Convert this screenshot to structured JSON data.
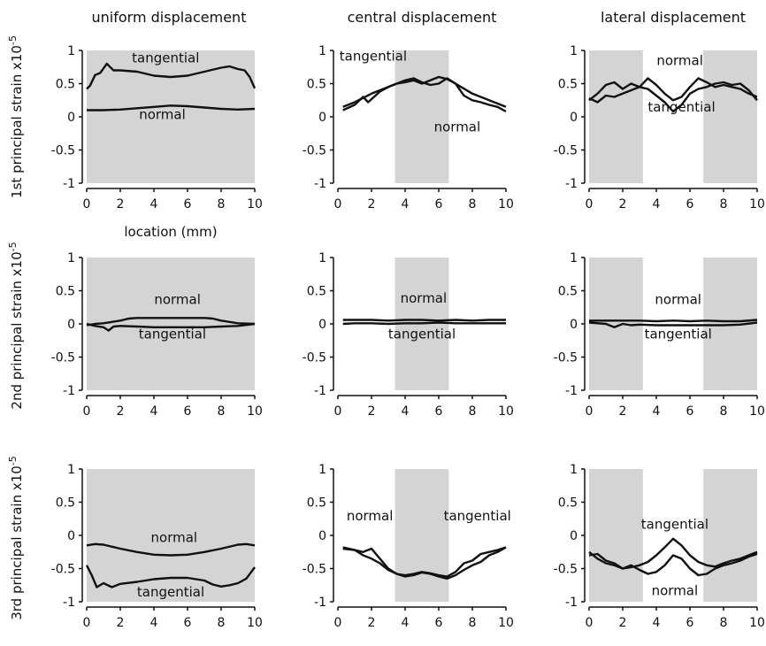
{
  "figure": {
    "col_titles": [
      "uniform displacement",
      "central displacement",
      "lateral displacement"
    ],
    "row_ylabels": [
      "1st principal strain x10",
      "2nd  principal strain x10",
      "3rd  principal strain x10"
    ],
    "ylabel_exponent": "-5",
    "xlabel": "location (mm)"
  },
  "chart_data": [
    {
      "type": "line",
      "title": "uniform displacement",
      "ylabel": "1st principal strain x10-5",
      "xlim": [
        0,
        10
      ],
      "ylim": [
        -1,
        1
      ],
      "xticks": [
        "0",
        "2",
        "4",
        "6",
        "8",
        "10"
      ],
      "yticks": [
        "1",
        "0.5",
        "0",
        "-0.5",
        "-1"
      ],
      "shaded": [
        [
          0,
          10
        ]
      ],
      "series": [
        {
          "name": "tangential",
          "x": [
            0,
            0.2,
            0.5,
            0.8,
            1,
            1.2,
            1.4,
            1.6,
            2,
            3,
            4,
            5,
            6,
            7,
            8,
            8.5,
            9,
            9.4,
            9.7,
            10
          ],
          "y": [
            0.42,
            0.47,
            0.63,
            0.66,
            0.73,
            0.8,
            0.75,
            0.7,
            0.7,
            0.68,
            0.62,
            0.6,
            0.62,
            0.68,
            0.74,
            0.76,
            0.72,
            0.7,
            0.6,
            0.43
          ]
        },
        {
          "name": "normal",
          "x": [
            0,
            1,
            2,
            3,
            4,
            5,
            6,
            7,
            8,
            9,
            10
          ],
          "y": [
            0.1,
            0.1,
            0.11,
            0.13,
            0.15,
            0.17,
            0.16,
            0.14,
            0.12,
            0.11,
            0.12
          ]
        }
      ],
      "annotations": [
        {
          "text": "tangential",
          "x": 4.7,
          "y": 0.82
        },
        {
          "text": "normal",
          "x": 4.5,
          "y": -0.03
        }
      ]
    },
    {
      "type": "line",
      "title": "central displacement",
      "ylabel": "",
      "xlim": [
        0,
        10
      ],
      "ylim": [
        -1,
        1
      ],
      "xticks": [
        "0",
        "2",
        "4",
        "6",
        "8",
        "10"
      ],
      "yticks": [
        "1",
        "0.5",
        "0",
        "-0.5",
        "-1"
      ],
      "shaded": [
        [
          3.4,
          6.6
        ]
      ],
      "series": [
        {
          "name": "tangential",
          "x": [
            0.3,
            1,
            1.5,
            1.8,
            2.5,
            3,
            3.5,
            4,
            4.5,
            5,
            5.5,
            6,
            6.5,
            7,
            8,
            9,
            10
          ],
          "y": [
            0.1,
            0.18,
            0.3,
            0.22,
            0.38,
            0.45,
            0.5,
            0.52,
            0.55,
            0.5,
            0.55,
            0.6,
            0.57,
            0.5,
            0.35,
            0.25,
            0.15
          ]
        },
        {
          "name": "normal",
          "x": [
            0.3,
            1,
            2,
            3,
            4,
            4.5,
            5,
            5.5,
            6,
            6.5,
            7,
            7.5,
            8,
            8.5,
            9,
            9.5,
            10
          ],
          "y": [
            0.15,
            0.22,
            0.35,
            0.45,
            0.55,
            0.58,
            0.52,
            0.48,
            0.5,
            0.58,
            0.5,
            0.32,
            0.25,
            0.22,
            0.18,
            0.15,
            0.08
          ]
        }
      ],
      "annotations": [
        {
          "text": "tangential",
          "x": 2.1,
          "y": 0.85
        },
        {
          "text": "normal",
          "x": 7.1,
          "y": -0.22
        }
      ]
    },
    {
      "type": "line",
      "title": "lateral displacement",
      "ylabel": "",
      "xlim": [
        0,
        10
      ],
      "ylim": [
        -1,
        1
      ],
      "xticks": [
        "0",
        "2",
        "4",
        "6",
        "8",
        "10"
      ],
      "yticks": [
        "1",
        "0.5",
        "0",
        "-0.5",
        "-1"
      ],
      "shaded": [
        [
          0,
          3.2
        ],
        [
          6.8,
          10
        ]
      ],
      "series": [
        {
          "name": "normal",
          "x": [
            0,
            0.5,
            1,
            1.5,
            2,
            2.5,
            3,
            3.5,
            4,
            4.5,
            5,
            5.5,
            6,
            6.5,
            7,
            7.5,
            8,
            8.5,
            9,
            9.5,
            10
          ],
          "y": [
            0.25,
            0.35,
            0.48,
            0.52,
            0.42,
            0.5,
            0.45,
            0.58,
            0.48,
            0.35,
            0.25,
            0.3,
            0.45,
            0.58,
            0.52,
            0.45,
            0.48,
            0.45,
            0.42,
            0.35,
            0.3
          ]
        },
        {
          "name": "tangential",
          "x": [
            0,
            0.5,
            1,
            1.5,
            2,
            2.5,
            3,
            3.5,
            4,
            4.5,
            5,
            5.5,
            6,
            6.5,
            7,
            7.5,
            8,
            8.5,
            9,
            9.5,
            10
          ],
          "y": [
            0.28,
            0.22,
            0.32,
            0.3,
            0.35,
            0.4,
            0.45,
            0.42,
            0.32,
            0.22,
            0.08,
            0.18,
            0.35,
            0.42,
            0.45,
            0.5,
            0.52,
            0.48,
            0.5,
            0.4,
            0.25
          ]
        }
      ],
      "annotations": [
        {
          "text": "normal",
          "x": 5.4,
          "y": 0.78
        },
        {
          "text": "tangential",
          "x": 5.5,
          "y": 0.08
        }
      ]
    },
    {
      "type": "line",
      "title": "",
      "ylabel": "2nd  principal strain x10-5",
      "xlim": [
        0,
        10
      ],
      "ylim": [
        -1,
        1
      ],
      "xticks": [
        "0",
        "2",
        "4",
        "6",
        "8",
        "10"
      ],
      "yticks": [
        "1",
        "0.5",
        "0",
        "-0.5",
        "-1"
      ],
      "shaded": [
        [
          0,
          10
        ]
      ],
      "series": [
        {
          "name": "normal",
          "x": [
            0,
            0.5,
            1,
            1.5,
            2,
            2.5,
            3,
            4,
            5,
            6,
            7,
            7.5,
            8,
            8.5,
            9,
            10
          ],
          "y": [
            -0.02,
            0,
            0.01,
            0.03,
            0.05,
            0.08,
            0.09,
            0.09,
            0.09,
            0.09,
            0.09,
            0.08,
            0.05,
            0.03,
            0.01,
            0
          ]
        },
        {
          "name": "tangential",
          "x": [
            0,
            0.5,
            1,
            1.3,
            1.6,
            2,
            3,
            4,
            5,
            6,
            7,
            8,
            9,
            10
          ],
          "y": [
            0,
            -0.03,
            -0.05,
            -0.1,
            -0.04,
            -0.03,
            -0.04,
            -0.05,
            -0.05,
            -0.05,
            -0.05,
            -0.04,
            -0.03,
            0
          ]
        }
      ],
      "annotations": [
        {
          "text": "normal",
          "x": 5.4,
          "y": 0.3
        },
        {
          "text": "tangential",
          "x": 5.1,
          "y": -0.22
        }
      ]
    },
    {
      "type": "line",
      "title": "",
      "ylabel": "",
      "xlim": [
        0,
        10
      ],
      "ylim": [
        -1,
        1
      ],
      "xticks": [
        "0",
        "2",
        "4",
        "6",
        "8",
        "10"
      ],
      "yticks": [
        "1",
        "0.5",
        "0",
        "-0.5",
        "-1"
      ],
      "shaded": [
        [
          3.4,
          6.6
        ]
      ],
      "series": [
        {
          "name": "normal",
          "x": [
            0.3,
            1,
            2,
            3,
            4,
            5,
            6,
            7,
            8,
            9,
            10
          ],
          "y": [
            0.06,
            0.06,
            0.06,
            0.05,
            0.06,
            0.06,
            0.05,
            0.06,
            0.05,
            0.06,
            0.06
          ]
        },
        {
          "name": "tangential",
          "x": [
            0.3,
            1,
            2,
            3,
            4,
            5,
            6,
            7,
            8,
            9,
            10
          ],
          "y": [
            0,
            0.01,
            0.01,
            0,
            0.01,
            0.01,
            0.02,
            0.01,
            0.01,
            0.01,
            0.01
          ]
        }
      ],
      "annotations": [
        {
          "text": "normal",
          "x": 5.1,
          "y": 0.32
        },
        {
          "text": "tangential",
          "x": 5,
          "y": -0.22
        }
      ]
    },
    {
      "type": "line",
      "title": "",
      "ylabel": "",
      "xlim": [
        0,
        10
      ],
      "ylim": [
        -1,
        1
      ],
      "xticks": [
        "0",
        "2",
        "4",
        "6",
        "8",
        "10"
      ],
      "yticks": [
        "1",
        "0.5",
        "0",
        "-0.5",
        "-1"
      ],
      "shaded": [
        [
          0,
          3.2
        ],
        [
          6.8,
          10
        ]
      ],
      "series": [
        {
          "name": "normal",
          "x": [
            0,
            1,
            2,
            3,
            4,
            5,
            6,
            7,
            8,
            9,
            10
          ],
          "y": [
            0.05,
            0.05,
            0.05,
            0.05,
            0.04,
            0.05,
            0.04,
            0.05,
            0.04,
            0.04,
            0.06
          ]
        },
        {
          "name": "tangential",
          "x": [
            0,
            1,
            1.5,
            2,
            2.5,
            3,
            4,
            5,
            6,
            7,
            8,
            9,
            10
          ],
          "y": [
            0.02,
            0,
            -0.05,
            0,
            -0.02,
            -0.01,
            -0.02,
            -0.02,
            -0.02,
            -0.02,
            -0.02,
            -0.01,
            0.02
          ]
        }
      ],
      "annotations": [
        {
          "text": "normal",
          "x": 5.3,
          "y": 0.3
        },
        {
          "text": "tangential",
          "x": 5.3,
          "y": -0.22
        }
      ]
    },
    {
      "type": "line",
      "title": "",
      "ylabel": "3rd  principal strain x10-5",
      "xlim": [
        0,
        10
      ],
      "ylim": [
        -1,
        1
      ],
      "xticks": [
        "0",
        "2",
        "4",
        "6",
        "8",
        "10"
      ],
      "yticks": [
        "1",
        "0.5",
        "0",
        "-0.5",
        "-1"
      ],
      "shaded": [
        [
          0,
          10
        ]
      ],
      "series": [
        {
          "name": "normal",
          "x": [
            0,
            0.5,
            1,
            2,
            3,
            4,
            5,
            6,
            7,
            8,
            9,
            9.5,
            10
          ],
          "y": [
            -0.15,
            -0.13,
            -0.14,
            -0.2,
            -0.25,
            -0.29,
            -0.3,
            -0.29,
            -0.25,
            -0.2,
            -0.14,
            -0.13,
            -0.15
          ]
        },
        {
          "name": "tangential",
          "x": [
            0,
            0.3,
            0.6,
            1,
            1.5,
            2,
            3,
            4,
            5,
            6,
            7,
            7.5,
            8,
            8.5,
            9,
            9.5,
            10
          ],
          "y": [
            -0.45,
            -0.6,
            -0.78,
            -0.72,
            -0.78,
            -0.73,
            -0.7,
            -0.66,
            -0.64,
            -0.64,
            -0.68,
            -0.74,
            -0.77,
            -0.75,
            -0.72,
            -0.65,
            -0.48
          ]
        }
      ],
      "annotations": [
        {
          "text": "normal",
          "x": 5.2,
          "y": -0.1
        },
        {
          "text": "tangential",
          "x": 5,
          "y": -0.92
        }
      ]
    },
    {
      "type": "line",
      "title": "",
      "ylabel": "",
      "xlim": [
        0,
        10
      ],
      "ylim": [
        -1,
        1
      ],
      "xticks": [
        "0",
        "2",
        "4",
        "6",
        "8",
        "10"
      ],
      "yticks": [
        "1",
        "0.5",
        "0",
        "-0.5",
        "-1"
      ],
      "shaded": [
        [
          3.4,
          6.6
        ]
      ],
      "series": [
        {
          "name": "normal",
          "x": [
            0.3,
            1,
            1.5,
            2,
            2.5,
            3,
            3.5,
            4,
            4.5,
            5,
            5.5,
            6,
            6.5,
            7,
            7.5,
            8,
            8.5,
            9,
            9.5,
            10
          ],
          "y": [
            -0.18,
            -0.22,
            -0.25,
            -0.2,
            -0.35,
            -0.5,
            -0.58,
            -0.6,
            -0.58,
            -0.55,
            -0.57,
            -0.6,
            -0.62,
            -0.55,
            -0.42,
            -0.38,
            -0.28,
            -0.25,
            -0.22,
            -0.18
          ]
        },
        {
          "name": "tangential",
          "x": [
            0.3,
            1,
            1.5,
            2,
            2.5,
            3,
            3.5,
            4,
            4.5,
            5,
            5.5,
            6,
            6.5,
            7,
            7.5,
            8,
            8.5,
            9,
            9.5,
            10
          ],
          "y": [
            -0.2,
            -0.22,
            -0.3,
            -0.35,
            -0.42,
            -0.52,
            -0.58,
            -0.62,
            -0.6,
            -0.56,
            -0.58,
            -0.62,
            -0.65,
            -0.6,
            -0.52,
            -0.45,
            -0.4,
            -0.3,
            -0.25,
            -0.18
          ]
        }
      ],
      "annotations": [
        {
          "text": "normal",
          "x": 1.9,
          "y": 0.23
        },
        {
          "text": "tangential",
          "x": 8.3,
          "y": 0.23
        }
      ]
    },
    {
      "type": "line",
      "title": "",
      "ylabel": "",
      "xlim": [
        0,
        10
      ],
      "ylim": [
        -1,
        1
      ],
      "xticks": [
        "0",
        "2",
        "4",
        "6",
        "8",
        "10"
      ],
      "yticks": [
        "1",
        "0.5",
        "0",
        "-0.5",
        "-1"
      ],
      "shaded": [
        [
          0,
          3.2
        ],
        [
          6.8,
          10
        ]
      ],
      "series": [
        {
          "name": "tangential",
          "x": [
            0,
            0.5,
            1,
            1.5,
            2,
            2.5,
            3,
            3.5,
            4,
            4.5,
            5,
            5.5,
            6,
            6.5,
            7,
            7.5,
            8,
            8.5,
            9,
            9.5,
            10
          ],
          "y": [
            -0.25,
            -0.35,
            -0.42,
            -0.45,
            -0.5,
            -0.48,
            -0.45,
            -0.4,
            -0.3,
            -0.18,
            -0.05,
            -0.15,
            -0.3,
            -0.4,
            -0.45,
            -0.47,
            -0.42,
            -0.38,
            -0.35,
            -0.3,
            -0.25
          ]
        },
        {
          "name": "normal",
          "x": [
            0,
            0.5,
            1,
            1.5,
            2,
            2.5,
            3,
            3.5,
            4,
            4.5,
            5,
            5.5,
            6,
            6.5,
            7,
            7.5,
            8,
            8.5,
            9,
            9.5,
            10
          ],
          "y": [
            -0.3,
            -0.28,
            -0.38,
            -0.42,
            -0.5,
            -0.45,
            -0.52,
            -0.58,
            -0.55,
            -0.45,
            -0.3,
            -0.35,
            -0.5,
            -0.6,
            -0.58,
            -0.5,
            -0.45,
            -0.42,
            -0.38,
            -0.32,
            -0.28
          ]
        }
      ],
      "annotations": [
        {
          "text": "tangential",
          "x": 5.1,
          "y": 0.1
        },
        {
          "text": "normal",
          "x": 5.1,
          "y": -0.9
        }
      ]
    }
  ]
}
